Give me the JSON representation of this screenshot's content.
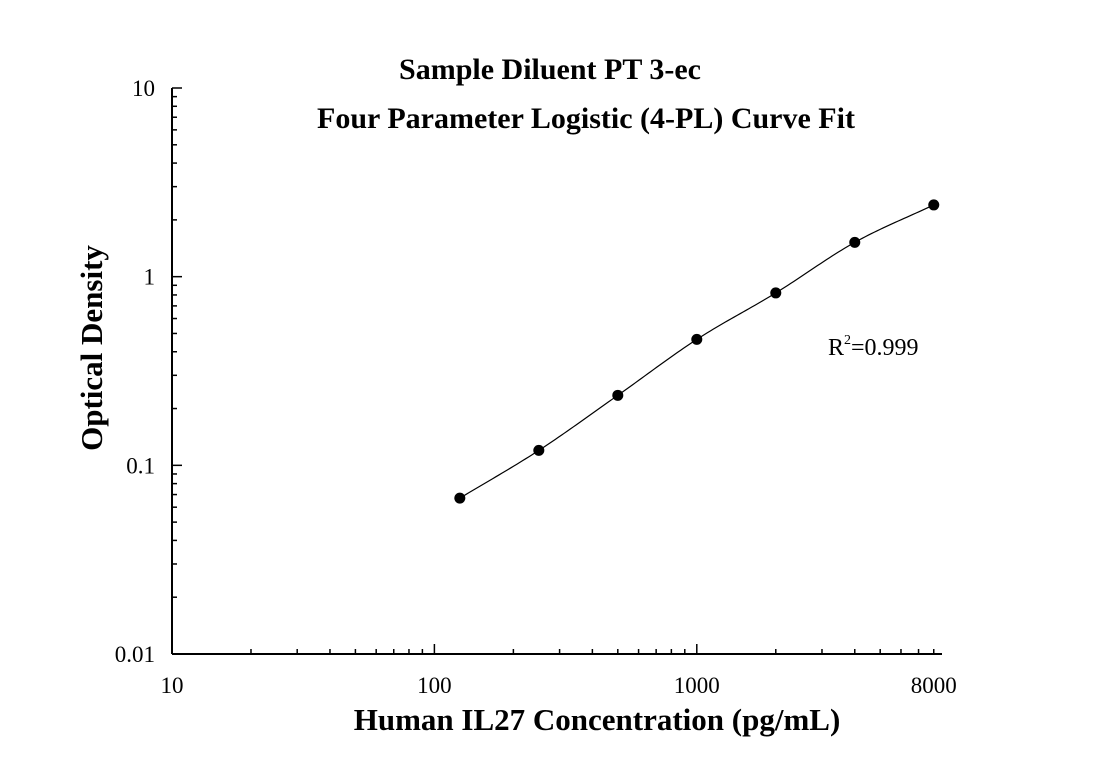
{
  "chart_data": {
    "type": "scatter",
    "title": "Sample Diluent PT 3-ec",
    "subtitle": "Four Parameter Logistic (4-PL) Curve Fit",
    "xlabel": "Human IL27 Concentration (pg/mL)",
    "ylabel": "Optical Density",
    "xscale": "log",
    "yscale": "log",
    "xlim": [
      10,
      8600
    ],
    "ylim": [
      0.01,
      10
    ],
    "xticks": [
      {
        "value": 10,
        "label": "10"
      },
      {
        "value": 100,
        "label": "100"
      },
      {
        "value": 1000,
        "label": "1000"
      },
      {
        "value": 8000,
        "label": "8000"
      }
    ],
    "yticks": [
      {
        "value": 0.01,
        "label": "0.01"
      },
      {
        "value": 0.1,
        "label": "0.1"
      },
      {
        "value": 1,
        "label": "1"
      },
      {
        "value": 10,
        "label": "10"
      }
    ],
    "grid": false,
    "legend": "none",
    "points": [
      {
        "x": 125,
        "y": 0.067
      },
      {
        "x": 250,
        "y": 0.12
      },
      {
        "x": 500,
        "y": 0.235
      },
      {
        "x": 1000,
        "y": 0.465
      },
      {
        "x": 2000,
        "y": 0.82
      },
      {
        "x": 4000,
        "y": 1.52
      },
      {
        "x": 8000,
        "y": 2.4
      }
    ],
    "fit": {
      "model": "4-PL",
      "x_range": [
        122,
        8000
      ],
      "r_squared_label": "R",
      "r_squared_sup": "2",
      "r_squared_value": "=0.999"
    },
    "colors": {
      "points": "#000000",
      "curve": "#000000",
      "axis": "#000000"
    }
  }
}
